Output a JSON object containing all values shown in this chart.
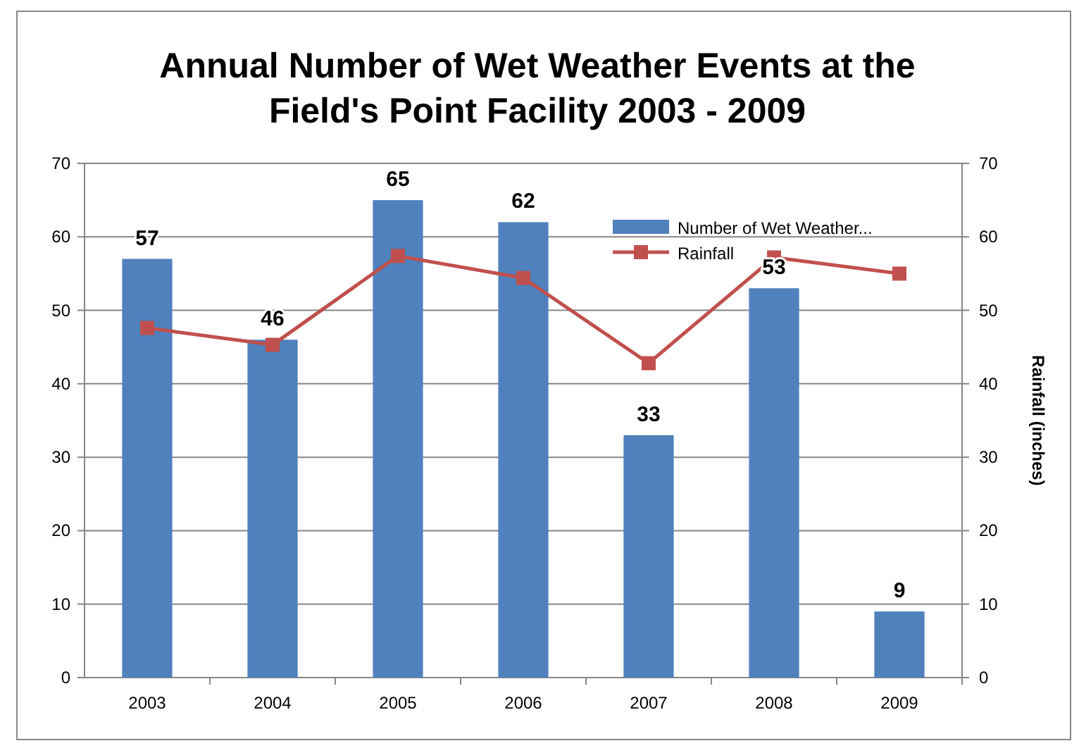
{
  "chart_data": {
    "type": "bar",
    "title": "Annual Number of Wet Weather Events at the Field's Point Facility 2003 - 2009",
    "y2label": "Rainfall (inches)",
    "categories": [
      "2003",
      "2004",
      "2005",
      "2006",
      "2007",
      "2008",
      "2009"
    ],
    "series": [
      {
        "name": "Number of Wet Weather...",
        "color": "#4f81bd",
        "values": [
          57,
          46,
          65,
          62,
          33,
          53,
          9
        ]
      },
      {
        "name": "Rainfall",
        "type": "line",
        "axis": "y2",
        "color": "#c0504d",
        "values": [
          47.6,
          45.3,
          57.4,
          54.4,
          42.8,
          57.2,
          55.0
        ]
      }
    ],
    "ylim": [
      0,
      70
    ],
    "yticks": [
      0,
      10,
      20,
      30,
      40,
      50,
      60,
      70
    ],
    "y2lim": [
      0,
      70
    ],
    "y2ticks": [
      0,
      10,
      20,
      30,
      40,
      50,
      60,
      70
    ],
    "grid": "y",
    "legend": "top right",
    "marker": "square",
    "value_labels": [
      "57",
      "46",
      "65",
      "62",
      "33",
      "53",
      "9"
    ]
  }
}
